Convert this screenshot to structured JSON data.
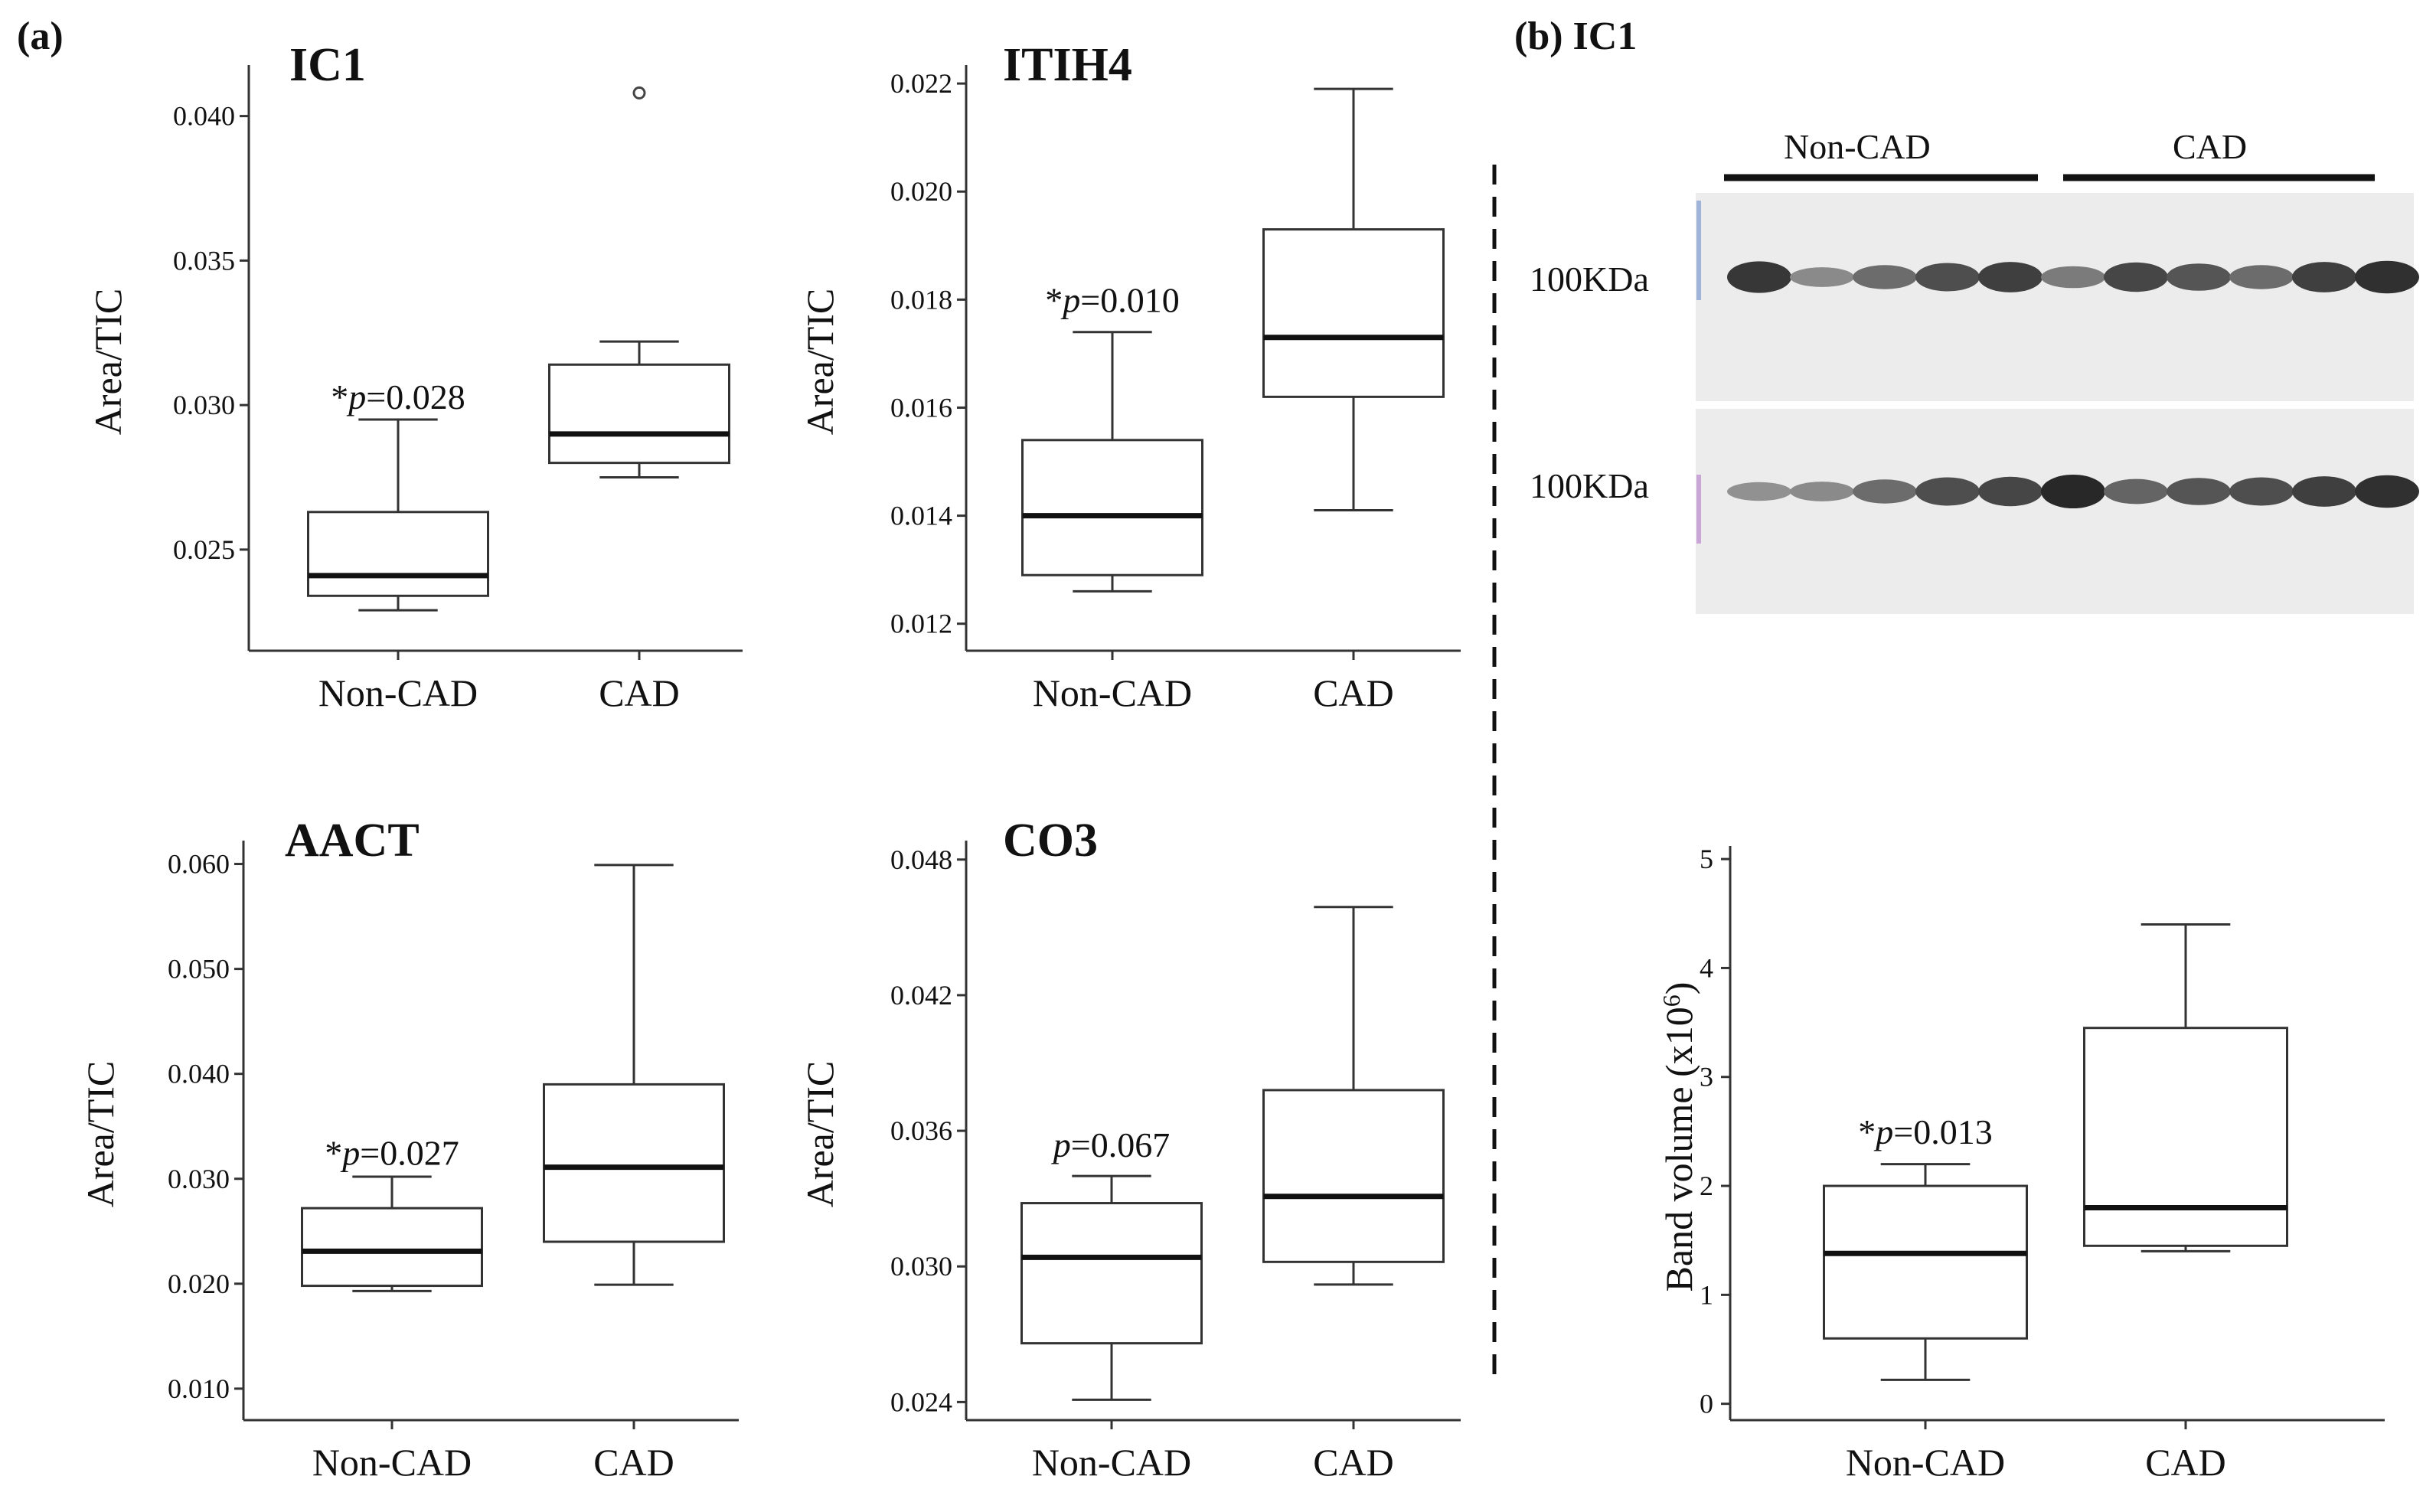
{
  "labels": {
    "panel_a": "(a)",
    "panel_b": "(b) IC1"
  },
  "blot": {
    "header_left": "Non-CAD",
    "header_right": "CAD",
    "marker_top": "100KDa",
    "marker_bottom": "100KDa",
    "top_band_intensity": [
      0.9,
      0.35,
      0.55,
      0.75,
      0.85,
      0.45,
      0.8,
      0.7,
      0.55,
      0.85,
      0.95
    ],
    "bottom_band_intensity": [
      0.3,
      0.35,
      0.55,
      0.75,
      0.8,
      1.0,
      0.6,
      0.7,
      0.75,
      0.85,
      0.95
    ]
  },
  "chart_data": [
    {
      "id": "ic1",
      "type": "box",
      "title": "IC1",
      "ylabel": "Area/TIC",
      "xlabel": "",
      "ylim": [
        0.0215,
        0.0415
      ],
      "yticks": [
        0.025,
        0.03,
        0.035,
        0.04
      ],
      "ytick_labels": [
        "0.025",
        "0.030",
        "0.035",
        "0.040"
      ],
      "categories": [
        "Non-CAD",
        "CAD"
      ],
      "boxes": [
        {
          "category": "Non-CAD",
          "whisker_low": 0.0229,
          "q1": 0.0234,
          "median": 0.0241,
          "q3": 0.0263,
          "whisker_high": 0.0295
        },
        {
          "category": "CAD",
          "whisker_low": 0.0275,
          "q1": 0.028,
          "median": 0.029,
          "q3": 0.0314,
          "whisker_high": 0.0322
        }
      ],
      "outliers": [
        {
          "category": "CAD",
          "value": 0.0408
        }
      ],
      "annotation": {
        "star": "*",
        "p": "p",
        "value": "=0.028",
        "category": "Non-CAD",
        "y": 0.0303
      }
    },
    {
      "id": "itih4",
      "type": "box",
      "title": "ITIH4",
      "ylabel": "Area/TIC",
      "xlabel": "",
      "ylim": [
        0.0115,
        0.0222
      ],
      "yticks": [
        0.012,
        0.014,
        0.016,
        0.018,
        0.02,
        0.022
      ],
      "ytick_labels": [
        "0.012",
        "0.014",
        "0.016",
        "0.018",
        "0.020",
        "0.022"
      ],
      "categories": [
        "Non-CAD",
        "CAD"
      ],
      "boxes": [
        {
          "category": "Non-CAD",
          "whisker_low": 0.0126,
          "q1": 0.0129,
          "median": 0.014,
          "q3": 0.0154,
          "whisker_high": 0.0174
        },
        {
          "category": "CAD",
          "whisker_low": 0.0141,
          "q1": 0.0162,
          "median": 0.0173,
          "q3": 0.0193,
          "whisker_high": 0.0219
        }
      ],
      "outliers": [],
      "annotation": {
        "star": "*",
        "p": "p",
        "value": "=0.010",
        "category": "Non-CAD",
        "y": 0.018
      }
    },
    {
      "id": "aact",
      "type": "box",
      "title": "AACT",
      "ylabel": "Area/TIC",
      "xlabel": "",
      "ylim": [
        0.007,
        0.0615
      ],
      "yticks": [
        0.01,
        0.02,
        0.03,
        0.04,
        0.05,
        0.06
      ],
      "ytick_labels": [
        "0.010",
        "0.020",
        "0.030",
        "0.040",
        "0.050",
        "0.060"
      ],
      "categories": [
        "Non-CAD",
        "CAD"
      ],
      "boxes": [
        {
          "category": "Non-CAD",
          "whisker_low": 0.0193,
          "q1": 0.0198,
          "median": 0.0231,
          "q3": 0.0272,
          "whisker_high": 0.0302
        },
        {
          "category": "CAD",
          "whisker_low": 0.0199,
          "q1": 0.024,
          "median": 0.0311,
          "q3": 0.039,
          "whisker_high": 0.0599
        }
      ],
      "outliers": [],
      "annotation": {
        "star": "*",
        "p": "p",
        "value": "=0.027",
        "category": "Non-CAD",
        "y": 0.0325
      }
    },
    {
      "id": "co3",
      "type": "box",
      "title": "CO3",
      "ylabel": "Area/TIC",
      "xlabel": "",
      "ylim": [
        0.0232,
        0.0485
      ],
      "yticks": [
        0.024,
        0.03,
        0.036,
        0.042,
        0.048
      ],
      "ytick_labels": [
        "0.024",
        "0.030",
        "0.036",
        "0.042",
        "0.048"
      ],
      "categories": [
        "Non-CAD",
        "CAD"
      ],
      "boxes": [
        {
          "category": "Non-CAD",
          "whisker_low": 0.0241,
          "q1": 0.0266,
          "median": 0.0304,
          "q3": 0.0328,
          "whisker_high": 0.034
        },
        {
          "category": "CAD",
          "whisker_low": 0.0292,
          "q1": 0.0302,
          "median": 0.0331,
          "q3": 0.0378,
          "whisker_high": 0.0459
        }
      ],
      "outliers": [],
      "annotation": {
        "star": "",
        "p": "p",
        "value": "=0.067",
        "category": "Non-CAD",
        "y": 0.0354
      }
    },
    {
      "id": "ic1_blot",
      "type": "box",
      "title": "",
      "ylabel": "Band volume (x10",
      "ylabel_sup": "6",
      "ylabel_close": ")",
      "xlabel": "",
      "ylim": [
        -0.15,
        5.05
      ],
      "yticks": [
        0,
        1,
        2,
        3,
        4,
        5
      ],
      "ytick_labels": [
        "0",
        "1",
        "2",
        "3",
        "4",
        "5"
      ],
      "categories": [
        "Non-CAD",
        "CAD"
      ],
      "boxes": [
        {
          "category": "Non-CAD",
          "whisker_low": 0.22,
          "q1": 0.6,
          "median": 1.38,
          "q3": 2.0,
          "whisker_high": 2.2
        },
        {
          "category": "CAD",
          "whisker_low": 1.4,
          "q1": 1.45,
          "median": 1.8,
          "q3": 3.45,
          "whisker_high": 4.4
        }
      ],
      "outliers": [],
      "annotation": {
        "star": "*",
        "p": "p",
        "value": "=0.013",
        "category": "Non-CAD",
        "y": 2.5
      }
    }
  ]
}
